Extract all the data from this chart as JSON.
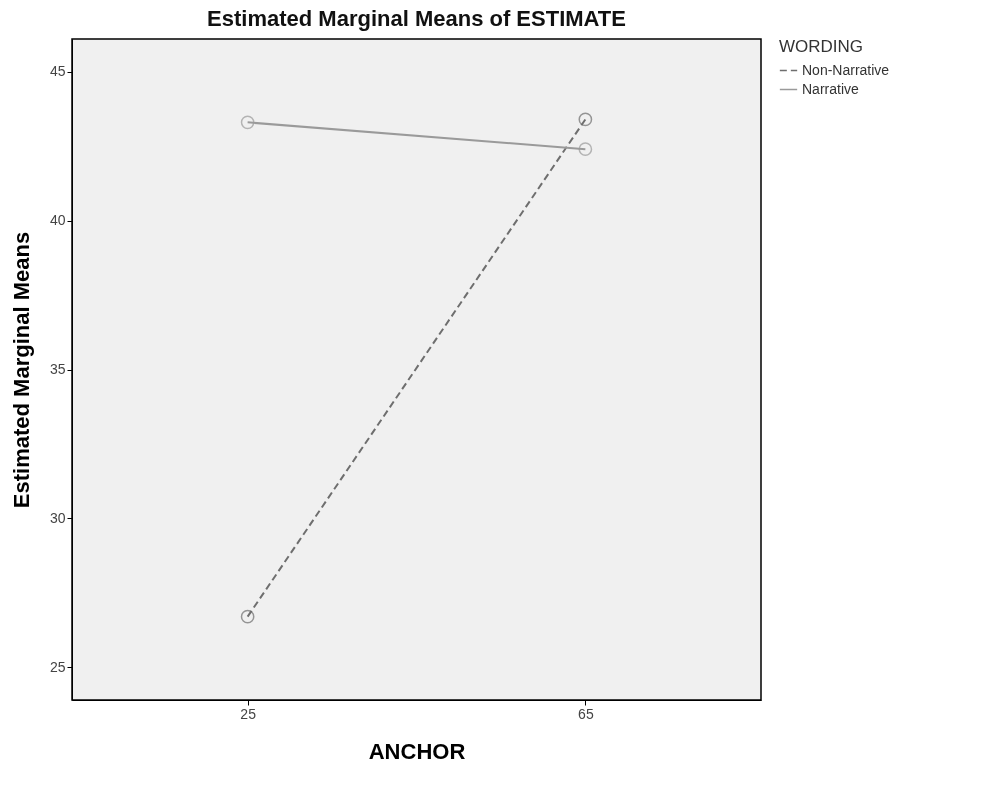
{
  "chart_data": {
    "type": "line",
    "title": "Estimated Marginal Means of ESTIMATE",
    "xlabel": "ANCHOR",
    "ylabel": "Estimated Marginal Means",
    "legend_title": "WORDING",
    "categories": [
      "25",
      "65"
    ],
    "series": [
      {
        "name": "Non-Narrative",
        "color": "#6e6e6e",
        "line_style": "dashed",
        "values": [
          26.7,
          43.4
        ]
      },
      {
        "name": "Narrative",
        "color": "#9a9a9a",
        "line_style": "solid",
        "values": [
          43.3,
          42.4
        ]
      }
    ],
    "ylim": [
      23.9,
      46.1
    ],
    "yticks": [
      25,
      30,
      35,
      40,
      45
    ],
    "grid": false,
    "legend": "top right",
    "marker": "circle"
  }
}
